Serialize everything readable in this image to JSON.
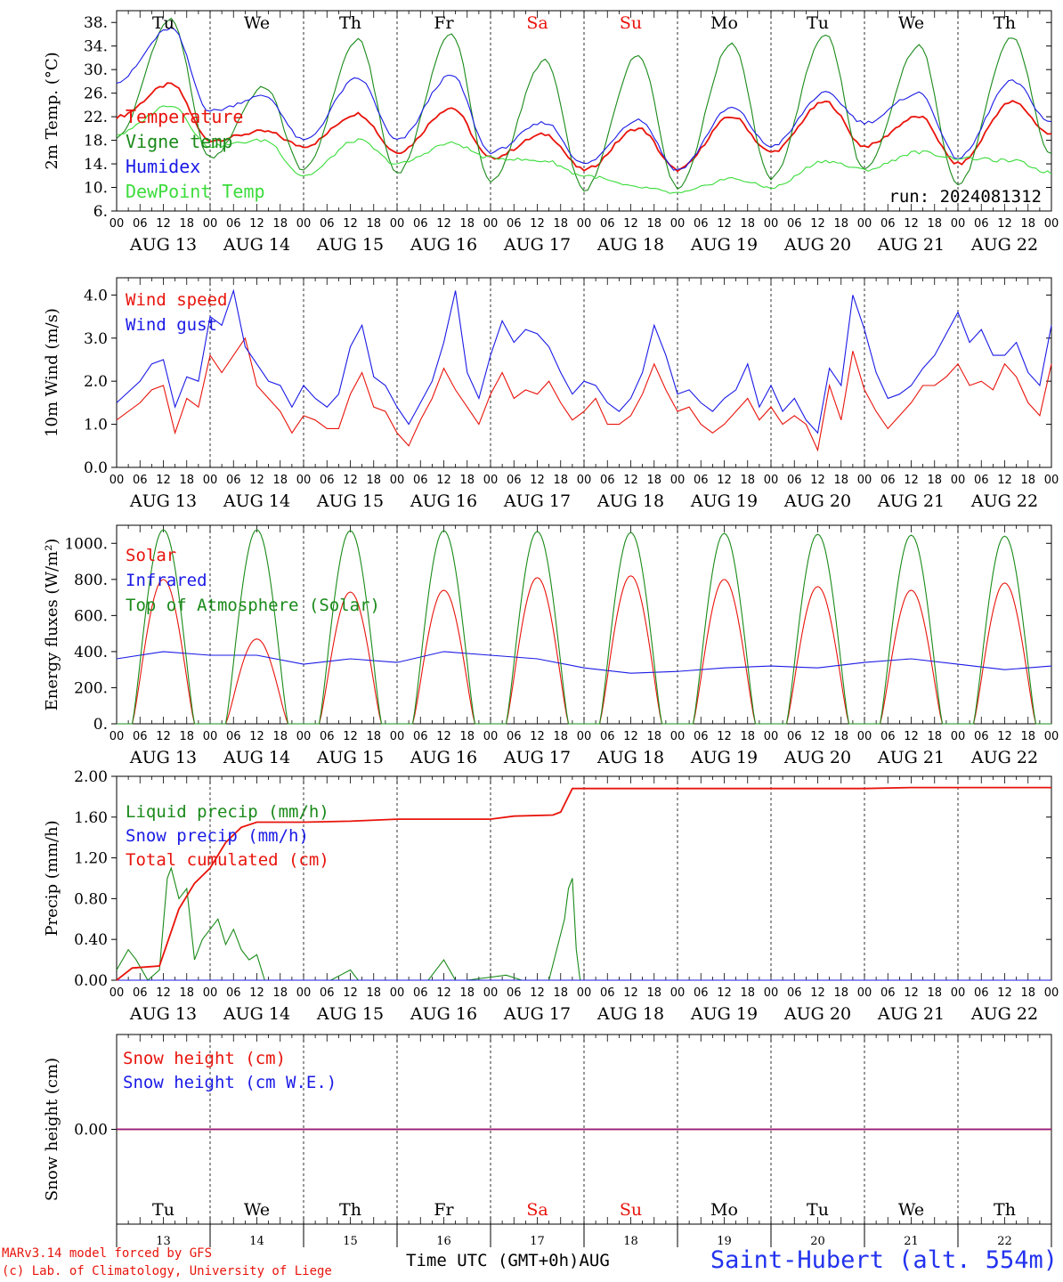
{
  "colors": {
    "red": "#e8140c",
    "green": "#1a8a1a",
    "blue": "#1a1ae6",
    "lightgreen": "#3adc3a",
    "purple": "#8a1a8a",
    "black": "#000000",
    "weekend": "#e8140c"
  },
  "days": [
    {
      "dow": "Tu",
      "month": "AUG",
      "date": "13",
      "weekend": false
    },
    {
      "dow": "We",
      "month": "AUG",
      "date": "14",
      "weekend": false
    },
    {
      "dow": "Th",
      "month": "AUG",
      "date": "15",
      "weekend": false
    },
    {
      "dow": "Fr",
      "month": "AUG",
      "date": "16",
      "weekend": false
    },
    {
      "dow": "Sa",
      "month": "AUG",
      "date": "17",
      "weekend": true
    },
    {
      "dow": "Su",
      "month": "AUG",
      "date": "18",
      "weekend": true
    },
    {
      "dow": "Mo",
      "month": "AUG",
      "date": "19",
      "weekend": false
    },
    {
      "dow": "Tu",
      "month": "AUG",
      "date": "20",
      "weekend": false
    },
    {
      "dow": "We",
      "month": "AUG",
      "date": "21",
      "weekend": false
    },
    {
      "dow": "Th",
      "month": "AUG",
      "date": "22",
      "weekend": false
    }
  ],
  "hour_labels": [
    "00",
    "06",
    "12",
    "18"
  ],
  "footer": {
    "credit1": "MARv3.14 model forced by GFS",
    "credit2": "(c) Lab. of Climatology, University of Liege",
    "xlabel": "Time UTC (GMT+0h)AUG",
    "station": "Saint-Hubert (alt. 554m)"
  },
  "chart_data": [
    {
      "type": "line",
      "ylabel": "2m Temp. (°C)",
      "ylim": [
        6,
        40
      ],
      "yticks": [
        6,
        10,
        14,
        18,
        22,
        26,
        30,
        34,
        38
      ],
      "ytick_labels": [
        "6.",
        "10.",
        "14.",
        "18.",
        "22.",
        "26.",
        "30.",
        "34.",
        "38."
      ],
      "annotation": "run: 2024081312",
      "series": [
        {
          "name": "Temperature",
          "color": "red",
          "kind": "diurnal",
          "min": [
            22,
            18,
            17,
            16,
            15,
            13,
            13,
            16,
            17,
            14,
            19
          ],
          "max": [
            27.5,
            19.5,
            22.5,
            23.5,
            19,
            20,
            22,
            24.5,
            22,
            24.5
          ]
        },
        {
          "name": "Vigne temp",
          "color": "green",
          "kind": "diurnal",
          "min": [
            18.5,
            15,
            13,
            12.5,
            11,
            9.5,
            10,
            11.5,
            13,
            10.5,
            15.5
          ],
          "max": [
            38.5,
            27,
            35,
            36,
            31.5,
            32.5,
            34.5,
            36,
            34,
            35.5
          ]
        },
        {
          "name": "Humidex",
          "color": "blue",
          "kind": "diurnal",
          "min": [
            28,
            23,
            18,
            18,
            16,
            14,
            13,
            17,
            21,
            15,
            21
          ],
          "max": [
            37,
            25.5,
            28.5,
            29,
            21,
            21.5,
            23.5,
            26,
            26,
            28
          ]
        },
        {
          "name": "DewPoint Temp",
          "color": "lightgreen",
          "kind": "diurnal",
          "min": [
            19,
            17,
            12,
            14,
            15,
            12,
            9,
            10,
            13,
            15,
            12.5
          ],
          "max": [
            24,
            18,
            18,
            17.5,
            14.5,
            10,
            11.5,
            14.5,
            16,
            14.5
          ]
        }
      ]
    },
    {
      "type": "line",
      "ylabel": "10m Wind (m/s)",
      "ylim": [
        0,
        4.4
      ],
      "yticks": [
        0,
        1,
        2,
        3,
        4
      ],
      "ytick_labels": [
        "0.0",
        "1.0",
        "2.0",
        "3.0",
        "4.0"
      ],
      "series": [
        {
          "name": "Wind speed",
          "color": "red",
          "kind": "points",
          "x_hours": [
            0,
            6,
            9,
            12,
            15,
            18,
            21,
            24,
            27,
            30,
            33,
            36,
            39,
            42,
            45,
            48,
            51,
            54,
            57,
            60,
            63,
            66,
            69,
            72,
            75,
            78,
            81,
            84,
            87,
            90,
            93,
            96,
            99,
            102,
            105,
            108,
            111,
            114,
            117,
            120,
            123,
            126,
            129,
            132,
            135,
            138,
            141,
            144,
            147,
            150,
            153,
            156,
            159,
            162,
            165,
            168,
            171,
            174,
            177,
            180,
            183,
            186,
            189,
            192,
            195,
            198,
            201,
            204,
            207,
            210,
            213,
            216,
            219,
            222,
            225,
            228,
            231,
            234,
            237,
            240
          ],
          "values": [
            1.1,
            1.5,
            1.8,
            1.9,
            0.8,
            1.6,
            1.4,
            2.6,
            2.2,
            2.6,
            3.0,
            1.9,
            1.6,
            1.3,
            0.8,
            1.2,
            1.1,
            0.9,
            0.9,
            1.7,
            2.2,
            1.4,
            1.3,
            0.8,
            0.5,
            1.1,
            1.6,
            2.3,
            1.8,
            1.4,
            1.0,
            1.7,
            2.2,
            1.6,
            1.8,
            1.7,
            2.0,
            1.5,
            1.1,
            1.3,
            1.6,
            1.0,
            1.0,
            1.2,
            1.7,
            2.4,
            1.8,
            1.3,
            1.4,
            1.0,
            0.8,
            1.0,
            1.3,
            1.6,
            1.1,
            1.4,
            1.0,
            1.2,
            1.0,
            0.4,
            1.9,
            1.1,
            2.7,
            1.8,
            1.3,
            0.9,
            1.2,
            1.5,
            1.9,
            1.9,
            2.1,
            2.4,
            1.9,
            2.0,
            1.8,
            2.4,
            2.1,
            1.5,
            1.2,
            2.4
          ]
        },
        {
          "name": "Wind gust",
          "color": "blue",
          "kind": "points",
          "x_hours": [
            0,
            6,
            9,
            12,
            15,
            18,
            21,
            24,
            27,
            30,
            33,
            36,
            39,
            42,
            45,
            48,
            51,
            54,
            57,
            60,
            63,
            66,
            69,
            72,
            75,
            78,
            81,
            84,
            87,
            90,
            93,
            96,
            99,
            102,
            105,
            108,
            111,
            114,
            117,
            120,
            123,
            126,
            129,
            132,
            135,
            138,
            141,
            144,
            147,
            150,
            153,
            156,
            159,
            162,
            165,
            168,
            171,
            174,
            177,
            180,
            183,
            186,
            189,
            192,
            195,
            198,
            201,
            204,
            207,
            210,
            213,
            216,
            219,
            222,
            225,
            228,
            231,
            234,
            237,
            240
          ],
          "values": [
            1.5,
            2.0,
            2.4,
            2.5,
            1.4,
            2.1,
            2.0,
            3.5,
            3.3,
            4.1,
            2.8,
            2.4,
            2.0,
            1.9,
            1.4,
            1.9,
            1.6,
            1.4,
            1.7,
            2.8,
            3.3,
            2.1,
            1.9,
            1.4,
            1.0,
            1.5,
            2.0,
            2.9,
            4.1,
            2.2,
            1.6,
            2.6,
            3.4,
            2.9,
            3.2,
            3.1,
            2.8,
            2.2,
            1.7,
            2.0,
            1.9,
            1.5,
            1.3,
            1.6,
            2.2,
            3.3,
            2.6,
            1.7,
            1.8,
            1.5,
            1.3,
            1.6,
            1.8,
            2.4,
            1.4,
            1.9,
            1.3,
            1.6,
            1.1,
            0.8,
            2.3,
            1.9,
            4.0,
            3.2,
            2.2,
            1.6,
            1.7,
            1.9,
            2.3,
            2.6,
            3.1,
            3.6,
            2.9,
            3.2,
            2.6,
            2.6,
            2.9,
            2.2,
            1.9,
            3.3
          ]
        }
      ]
    },
    {
      "type": "line",
      "ylabel": "Energy fluxes (W/m²)",
      "ylim": [
        0,
        1100
      ],
      "yticks": [
        0,
        200,
        400,
        600,
        800,
        1000
      ],
      "ytick_labels": [
        "0.",
        "200.",
        "400.",
        "600.",
        "800.",
        "1000."
      ],
      "series": [
        {
          "name": "Solar",
          "color": "red",
          "kind": "bell",
          "peaks": [
            800,
            470,
            730,
            740,
            810,
            820,
            800,
            760,
            740,
            780
          ]
        },
        {
          "name": "Infrared",
          "color": "blue",
          "kind": "points",
          "x_hours": [
            0,
            12,
            24,
            36,
            48,
            60,
            72,
            84,
            96,
            108,
            120,
            132,
            144,
            156,
            168,
            180,
            192,
            204,
            216,
            228,
            240
          ],
          "values": [
            360,
            400,
            380,
            380,
            330,
            360,
            340,
            400,
            380,
            360,
            310,
            280,
            290,
            310,
            320,
            310,
            340,
            360,
            330,
            300,
            320
          ]
        },
        {
          "name": "Top of Atmosphere (Solar)",
          "color": "green",
          "kind": "bell",
          "peaks": [
            1075,
            1075,
            1070,
            1070,
            1065,
            1060,
            1055,
            1050,
            1045,
            1040
          ]
        }
      ]
    },
    {
      "type": "line",
      "ylabel": "Precip (mm/h)",
      "ylim": [
        0,
        2
      ],
      "yticks": [
        0,
        0.4,
        0.8,
        1.2,
        1.6,
        2.0
      ],
      "ytick_labels": [
        "0.00",
        "0.40",
        "0.80",
        "1.20",
        "1.60",
        "2.00"
      ],
      "series": [
        {
          "name": "Liquid precip (mm/h)",
          "color": "green",
          "kind": "points",
          "x_hours": [
            0,
            3,
            5,
            8,
            11,
            13,
            14,
            16,
            18,
            20,
            22,
            24,
            26,
            28,
            30,
            32,
            34,
            36,
            38,
            40,
            43,
            46,
            55,
            60,
            62,
            66,
            80,
            84,
            87,
            90,
            100,
            104,
            111,
            115,
            116,
            117,
            118,
            119,
            240
          ],
          "values": [
            0.1,
            0.3,
            0.2,
            0,
            0.1,
            1.0,
            1.1,
            0.8,
            0.9,
            0.2,
            0.4,
            0.5,
            0.6,
            0.35,
            0.5,
            0.3,
            0.2,
            0.25,
            0,
            0,
            0,
            0,
            0,
            0.1,
            0,
            0,
            0,
            0.2,
            0,
            0,
            0.05,
            0,
            0,
            0.6,
            0.9,
            1.0,
            0.3,
            0,
            0
          ]
        },
        {
          "name": "Snow precip (mm/h)",
          "color": "blue",
          "kind": "points",
          "x_hours": [
            0,
            240
          ],
          "values": [
            0,
            0
          ]
        },
        {
          "name": "Total cumulated (cm)",
          "color": "red",
          "kind": "points",
          "x_hours": [
            0,
            4,
            11,
            16,
            20,
            24,
            28,
            32,
            36,
            48,
            60,
            72,
            82,
            96,
            102,
            112,
            114,
            117,
            120,
            144,
            168,
            192,
            204,
            216,
            240
          ],
          "values": [
            0,
            0.12,
            0.14,
            0.7,
            0.95,
            1.1,
            1.35,
            1.5,
            1.55,
            1.55,
            1.56,
            1.58,
            1.58,
            1.58,
            1.61,
            1.62,
            1.65,
            1.88,
            1.88,
            1.88,
            1.88,
            1.88,
            1.89,
            1.89,
            1.89
          ]
        }
      ]
    },
    {
      "type": "line",
      "ylabel": "Snow height (cm)",
      "ylim": [
        -0.5,
        0.5
      ],
      "yticks": [
        0
      ],
      "ytick_labels": [
        "0.00"
      ],
      "series": [
        {
          "name": "Snow height (cm)",
          "color": "red",
          "kind": "points",
          "x_hours": [
            0,
            240
          ],
          "values": [
            0,
            0
          ]
        },
        {
          "name": "Snow height (cm W.E.)",
          "color": "blue",
          "kind": "points",
          "x_hours": [
            0,
            240
          ],
          "values": [
            0,
            0
          ]
        }
      ]
    }
  ]
}
